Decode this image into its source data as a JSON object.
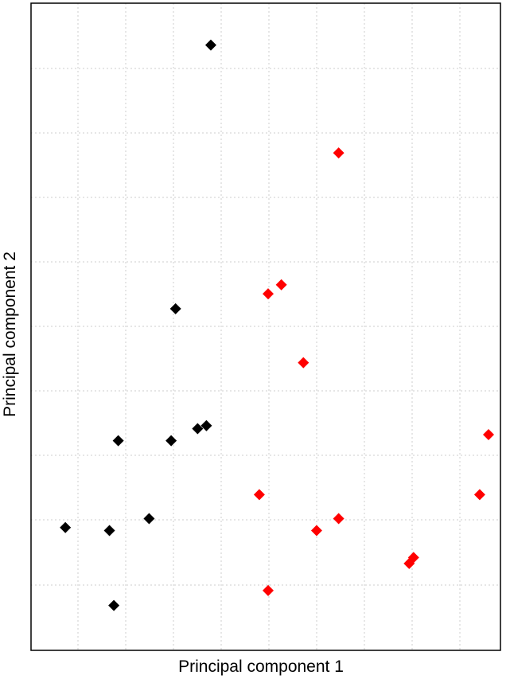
{
  "chart_data": {
    "type": "scatter",
    "title": "",
    "xlabel": "Principal component 1",
    "ylabel": "Principal component 2",
    "xlim": [
      0,
      10
    ],
    "ylim": [
      0,
      10
    ],
    "grid": true,
    "legend": "none",
    "marker": "diamond",
    "series": [
      {
        "color": "#000000",
        "points": [
          {
            "x": 3.7,
            "y": 9.7
          },
          {
            "x": 2.9,
            "y": 5.3
          },
          {
            "x": 1.6,
            "y": 3.1
          },
          {
            "x": 2.8,
            "y": 3.1
          },
          {
            "x": 3.4,
            "y": 3.3
          },
          {
            "x": 3.6,
            "y": 3.35
          },
          {
            "x": 2.3,
            "y": 1.8
          },
          {
            "x": 0.4,
            "y": 1.65
          },
          {
            "x": 1.4,
            "y": 1.6
          },
          {
            "x": 1.5,
            "y": 0.35
          }
        ]
      },
      {
        "color": "#ff0000",
        "points": [
          {
            "x": 6.6,
            "y": 7.9
          },
          {
            "x": 5.3,
            "y": 5.7
          },
          {
            "x": 5.0,
            "y": 5.55
          },
          {
            "x": 5.8,
            "y": 4.4
          },
          {
            "x": 10.0,
            "y": 3.2
          },
          {
            "x": 4.8,
            "y": 2.2
          },
          {
            "x": 9.8,
            "y": 2.2
          },
          {
            "x": 6.6,
            "y": 1.8
          },
          {
            "x": 6.1,
            "y": 1.6
          },
          {
            "x": 8.3,
            "y": 1.15
          },
          {
            "x": 8.2,
            "y": 1.05
          },
          {
            "x": 5.0,
            "y": 0.6
          }
        ]
      }
    ]
  }
}
